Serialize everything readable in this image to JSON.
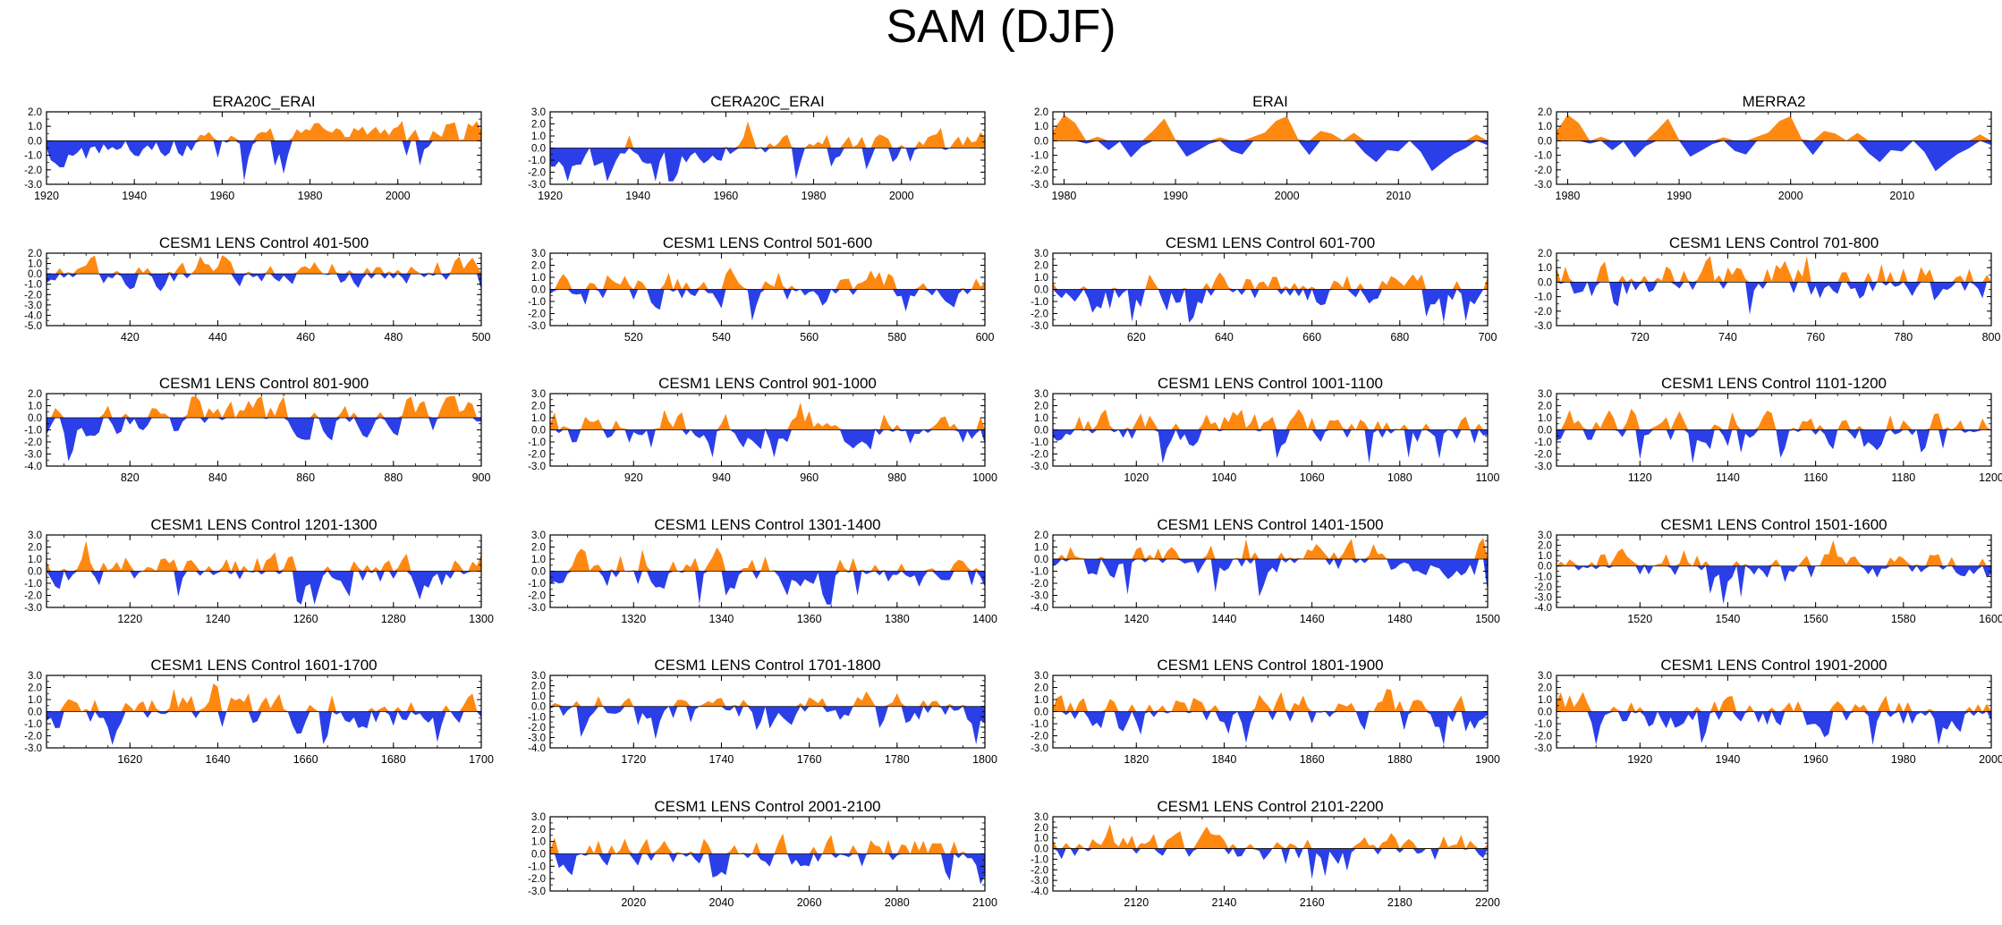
{
  "title": "SAM (DJF)",
  "colors": {
    "positive": "#ff8811",
    "negative": "#2a3fe8",
    "axis": "#000000",
    "zero_line": "#000000"
  },
  "chart_data": [
    {
      "type": "area",
      "title": "ERA20C_ERAI",
      "xlim": [
        1920,
        2019
      ],
      "ylim": [
        -3.0,
        2.0
      ],
      "yticks": [
        2.0,
        1.0,
        0.0,
        -1.0,
        -2.0,
        -3.0
      ],
      "ytick_labels": [
        "2.0",
        "1.0",
        "0.0",
        "-1.0",
        "-2.0",
        "-3.0"
      ],
      "xticks": [
        1920,
        1940,
        1960,
        1980,
        2000
      ],
      "xtick_labels": [
        "1920",
        "1940",
        "1960",
        "1980",
        "2000"
      ],
      "trend": [
        [
          0,
          -1.1
        ],
        [
          0.3,
          -0.5
        ],
        [
          0.5,
          0.4
        ],
        [
          0.7,
          0.6
        ],
        [
          1,
          0.9
        ]
      ],
      "amp": 0.55,
      "seed": 11
    },
    {
      "type": "area",
      "title": "CERA20C_ERAI",
      "xlim": [
        1920,
        2019
      ],
      "ylim": [
        -3.0,
        3.0
      ],
      "yticks": [
        3.0,
        2.0,
        1.0,
        0.0,
        -1.0,
        -2.0,
        -3.0
      ],
      "ytick_labels": [
        "3.0",
        "2.0",
        "1.0",
        "0.0",
        "-1.0",
        "-2.0",
        "-3.0"
      ],
      "xticks": [
        1920,
        1940,
        1960,
        1980,
        2000
      ],
      "xtick_labels": [
        "1920",
        "1940",
        "1960",
        "1980",
        "2000"
      ],
      "trend": [
        [
          0,
          -0.9
        ],
        [
          0.3,
          -0.6
        ],
        [
          0.5,
          0.2
        ],
        [
          0.7,
          0.5
        ],
        [
          1,
          0.9
        ]
      ],
      "amp": 0.6,
      "seed": 12
    },
    {
      "type": "area",
      "title": "ERAI",
      "xlim": [
        1979,
        2018
      ],
      "ylim": [
        -3.0,
        2.0
      ],
      "yticks": [
        2.0,
        1.0,
        0.0,
        -1.0,
        -2.0,
        -3.0
      ],
      "ytick_labels": [
        "2.0",
        "1.0",
        "0.0",
        "-1.0",
        "-2.0",
        "-3.0"
      ],
      "xticks": [
        1980,
        1990,
        2000,
        2010
      ],
      "xtick_labels": [
        "1980",
        "1990",
        "2000",
        "2010"
      ],
      "trend": [
        [
          0,
          0
        ],
        [
          1,
          0
        ]
      ],
      "amp": 1.0,
      "seed": 13
    },
    {
      "type": "area",
      "title": "MERRA2",
      "xlim": [
        1979,
        2018
      ],
      "ylim": [
        -3.0,
        2.0
      ],
      "yticks": [
        2.0,
        1.0,
        0.0,
        -1.0,
        -2.0,
        -3.0
      ],
      "ytick_labels": [
        "2.0",
        "1.0",
        "0.0",
        "-1.0",
        "-2.0",
        "-3.0"
      ],
      "xticks": [
        1980,
        1990,
        2000,
        2010
      ],
      "xtick_labels": [
        "1980",
        "1990",
        "2000",
        "2010"
      ],
      "trend": [
        [
          0,
          0
        ],
        [
          1,
          0
        ]
      ],
      "amp": 1.0,
      "seed": 13
    },
    {
      "type": "area",
      "title": "CESM1 LENS Control 401-500",
      "xlim": [
        401,
        500
      ],
      "ylim": [
        -5.0,
        2.0
      ],
      "yticks": [
        2.0,
        1.0,
        0.0,
        -1.0,
        -2.0,
        -3.0,
        -4.0,
        -5.0
      ],
      "ytick_labels": [
        "2.0",
        "1.0",
        "0.0",
        "-1.0",
        "-2.0",
        "-3.0",
        "-4.0",
        "-5.0"
      ],
      "xticks": [
        420,
        440,
        460,
        480,
        500
      ],
      "xtick_labels": [
        "420",
        "440",
        "460",
        "480",
        "500"
      ],
      "amp": 1.0,
      "seed": 21
    },
    {
      "type": "area",
      "title": "CESM1 LENS Control 501-600",
      "xlim": [
        501,
        600
      ],
      "ylim": [
        -3.0,
        3.0
      ],
      "yticks": [
        3.0,
        2.0,
        1.0,
        0.0,
        -1.0,
        -2.0,
        -3.0
      ],
      "ytick_labels": [
        "3.0",
        "2.0",
        "1.0",
        "0.0",
        "-1.0",
        "-2.0",
        "-3.0"
      ],
      "xticks": [
        520,
        540,
        560,
        580,
        600
      ],
      "xtick_labels": [
        "520",
        "540",
        "560",
        "580",
        "600"
      ],
      "amp": 1.0,
      "seed": 22
    },
    {
      "type": "area",
      "title": "CESM1 LENS Control 601-700",
      "xlim": [
        601,
        700
      ],
      "ylim": [
        -3.0,
        3.0
      ],
      "yticks": [
        3.0,
        2.0,
        1.0,
        0.0,
        -1.0,
        -2.0,
        -3.0
      ],
      "ytick_labels": [
        "3.0",
        "2.0",
        "1.0",
        "0.0",
        "-1.0",
        "-2.0",
        "-3.0"
      ],
      "xticks": [
        620,
        640,
        660,
        680,
        700
      ],
      "xtick_labels": [
        "620",
        "640",
        "660",
        "680",
        "700"
      ],
      "amp": 1.0,
      "seed": 23
    },
    {
      "type": "area",
      "title": "CESM1 LENS Control 701-800",
      "xlim": [
        701,
        800
      ],
      "ylim": [
        -3.0,
        2.0
      ],
      "yticks": [
        2.0,
        1.0,
        0.0,
        -1.0,
        -2.0,
        -3.0
      ],
      "ytick_labels": [
        "2.0",
        "1.0",
        "0.0",
        "-1.0",
        "-2.0",
        "-3.0"
      ],
      "xticks": [
        720,
        740,
        760,
        780,
        800
      ],
      "xtick_labels": [
        "720",
        "740",
        "760",
        "780",
        "800"
      ],
      "amp": 1.0,
      "seed": 24
    },
    {
      "type": "area",
      "title": "CESM1 LENS Control 801-900",
      "xlim": [
        801,
        900
      ],
      "ylim": [
        -4.0,
        2.0
      ],
      "yticks": [
        2.0,
        1.0,
        0.0,
        -1.0,
        -2.0,
        -3.0,
        -4.0
      ],
      "ytick_labels": [
        "2.0",
        "1.0",
        "0.0",
        "-1.0",
        "-2.0",
        "-3.0",
        "-4.0"
      ],
      "xticks": [
        820,
        840,
        860,
        880,
        900
      ],
      "xtick_labels": [
        "820",
        "840",
        "860",
        "880",
        "900"
      ],
      "amp": 1.0,
      "seed": 31
    },
    {
      "type": "area",
      "title": "CESM1 LENS Control 901-1000",
      "xlim": [
        901,
        1000
      ],
      "ylim": [
        -3.0,
        3.0
      ],
      "yticks": [
        3.0,
        2.0,
        1.0,
        0.0,
        -1.0,
        -2.0,
        -3.0
      ],
      "ytick_labels": [
        "3.0",
        "2.0",
        "1.0",
        "0.0",
        "-1.0",
        "-2.0",
        "-3.0"
      ],
      "xticks": [
        920,
        940,
        960,
        980,
        1000
      ],
      "xtick_labels": [
        "920",
        "940",
        "960",
        "980",
        "1000"
      ],
      "amp": 1.0,
      "seed": 32
    },
    {
      "type": "area",
      "title": "CESM1 LENS Control 1001-1100",
      "xlim": [
        1001,
        1100
      ],
      "ylim": [
        -3.0,
        3.0
      ],
      "yticks": [
        3.0,
        2.0,
        1.0,
        0.0,
        -1.0,
        -2.0,
        -3.0
      ],
      "ytick_labels": [
        "3.0",
        "2.0",
        "1.0",
        "0.0",
        "-1.0",
        "-2.0",
        "-3.0"
      ],
      "xticks": [
        1020,
        1040,
        1060,
        1080,
        1100
      ],
      "xtick_labels": [
        "1020",
        "1040",
        "1060",
        "1080",
        "1100"
      ],
      "amp": 1.0,
      "seed": 33
    },
    {
      "type": "area",
      "title": "CESM1 LENS Control 1101-1200",
      "xlim": [
        1101,
        1200
      ],
      "ylim": [
        -3.0,
        3.0
      ],
      "yticks": [
        3.0,
        2.0,
        1.0,
        0.0,
        -1.0,
        -2.0,
        -3.0
      ],
      "ytick_labels": [
        "3.0",
        "2.0",
        "1.0",
        "0.0",
        "-1.0",
        "-2.0",
        "-3.0"
      ],
      "xticks": [
        1120,
        1140,
        1160,
        1180,
        1200
      ],
      "xtick_labels": [
        "1120",
        "1140",
        "1160",
        "1180",
        "1200"
      ],
      "amp": 1.0,
      "seed": 34
    },
    {
      "type": "area",
      "title": "CESM1 LENS Control 1201-1300",
      "xlim": [
        1201,
        1300
      ],
      "ylim": [
        -3.0,
        3.0
      ],
      "yticks": [
        3.0,
        2.0,
        1.0,
        0.0,
        -1.0,
        -2.0,
        -3.0
      ],
      "ytick_labels": [
        "3.0",
        "2.0",
        "1.0",
        "0.0",
        "-1.0",
        "-2.0",
        "-3.0"
      ],
      "xticks": [
        1220,
        1240,
        1260,
        1280,
        1300
      ],
      "xtick_labels": [
        "1220",
        "1240",
        "1260",
        "1280",
        "1300"
      ],
      "amp": 1.0,
      "seed": 41
    },
    {
      "type": "area",
      "title": "CESM1 LENS Control 1301-1400",
      "xlim": [
        1301,
        1400
      ],
      "ylim": [
        -3.0,
        3.0
      ],
      "yticks": [
        3.0,
        2.0,
        1.0,
        0.0,
        -1.0,
        -2.0,
        -3.0
      ],
      "ytick_labels": [
        "3.0",
        "2.0",
        "1.0",
        "0.0",
        "-1.0",
        "-2.0",
        "-3.0"
      ],
      "xticks": [
        1320,
        1340,
        1360,
        1380,
        1400
      ],
      "xtick_labels": [
        "1320",
        "1340",
        "1360",
        "1380",
        "1400"
      ],
      "amp": 1.0,
      "seed": 42
    },
    {
      "type": "area",
      "title": "CESM1 LENS Control 1401-1500",
      "xlim": [
        1401,
        1500
      ],
      "ylim": [
        -4.0,
        2.0
      ],
      "yticks": [
        2.0,
        1.0,
        0.0,
        -1.0,
        -2.0,
        -3.0,
        -4.0
      ],
      "ytick_labels": [
        "2.0",
        "1.0",
        "0.0",
        "-1.0",
        "-2.0",
        "-3.0",
        "-4.0"
      ],
      "xticks": [
        1420,
        1440,
        1460,
        1480,
        1500
      ],
      "xtick_labels": [
        "1420",
        "1440",
        "1460",
        "1480",
        "1500"
      ],
      "amp": 1.0,
      "seed": 43
    },
    {
      "type": "area",
      "title": "CESM1 LENS Control 1501-1600",
      "xlim": [
        1501,
        1600
      ],
      "ylim": [
        -4.0,
        3.0
      ],
      "yticks": [
        3.0,
        2.0,
        1.0,
        0.0,
        -1.0,
        -2.0,
        -3.0,
        -4.0
      ],
      "ytick_labels": [
        "3.0",
        "2.0",
        "1.0",
        "0.0",
        "-1.0",
        "-2.0",
        "-3.0",
        "-4.0"
      ],
      "xticks": [
        1520,
        1540,
        1560,
        1580,
        1600
      ],
      "xtick_labels": [
        "1520",
        "1540",
        "1560",
        "1580",
        "1600"
      ],
      "amp": 1.0,
      "seed": 44
    },
    {
      "type": "area",
      "title": "CESM1 LENS Control 1601-1700",
      "xlim": [
        1601,
        1700
      ],
      "ylim": [
        -3.0,
        3.0
      ],
      "yticks": [
        3.0,
        2.0,
        1.0,
        0.0,
        -1.0,
        -2.0,
        -3.0
      ],
      "ytick_labels": [
        "3.0",
        "2.0",
        "1.0",
        "0.0",
        "-1.0",
        "-2.0",
        "-3.0"
      ],
      "xticks": [
        1620,
        1640,
        1660,
        1680,
        1700
      ],
      "xtick_labels": [
        "1620",
        "1640",
        "1660",
        "1680",
        "1700"
      ],
      "amp": 1.0,
      "seed": 51
    },
    {
      "type": "area",
      "title": "CESM1 LENS Control 1701-1800",
      "xlim": [
        1701,
        1800
      ],
      "ylim": [
        -4.0,
        3.0
      ],
      "yticks": [
        3.0,
        2.0,
        1.0,
        0.0,
        -1.0,
        -2.0,
        -3.0,
        -4.0
      ],
      "ytick_labels": [
        "3.0",
        "2.0",
        "1.0",
        "0.0",
        "-1.0",
        "-2.0",
        "-3.0",
        "-4.0"
      ],
      "xticks": [
        1720,
        1740,
        1760,
        1780,
        1800
      ],
      "xtick_labels": [
        "1720",
        "1740",
        "1760",
        "1780",
        "1800"
      ],
      "amp": 1.0,
      "seed": 52
    },
    {
      "type": "area",
      "title": "CESM1 LENS Control 1801-1900",
      "xlim": [
        1801,
        1900
      ],
      "ylim": [
        -3.0,
        3.0
      ],
      "yticks": [
        3.0,
        2.0,
        1.0,
        0.0,
        -1.0,
        -2.0,
        -3.0
      ],
      "ytick_labels": [
        "3.0",
        "2.0",
        "1.0",
        "0.0",
        "-1.0",
        "-2.0",
        "-3.0"
      ],
      "xticks": [
        1820,
        1840,
        1860,
        1880,
        1900
      ],
      "xtick_labels": [
        "1820",
        "1840",
        "1860",
        "1880",
        "1900"
      ],
      "amp": 1.0,
      "seed": 53
    },
    {
      "type": "area",
      "title": "CESM1 LENS Control 1901-2000",
      "xlim": [
        1901,
        2000
      ],
      "ylim": [
        -3.0,
        3.0
      ],
      "yticks": [
        3.0,
        2.0,
        1.0,
        0.0,
        -1.0,
        -2.0,
        -3.0
      ],
      "ytick_labels": [
        "3.0",
        "2.0",
        "1.0",
        "0.0",
        "-1.0",
        "-2.0",
        "-3.0"
      ],
      "xticks": [
        1920,
        1940,
        1960,
        1980,
        2000
      ],
      "xtick_labels": [
        "1920",
        "1940",
        "1960",
        "1980",
        "2000"
      ],
      "amp": 1.0,
      "seed": 54
    },
    {
      "type": "area",
      "title": "CESM1 LENS Control 2001-2100",
      "xlim": [
        2001,
        2100
      ],
      "ylim": [
        -3.0,
        3.0
      ],
      "yticks": [
        3.0,
        2.0,
        1.0,
        0.0,
        -1.0,
        -2.0,
        -3.0
      ],
      "ytick_labels": [
        "3.0",
        "2.0",
        "1.0",
        "0.0",
        "-1.0",
        "-2.0",
        "-3.0"
      ],
      "xticks": [
        2020,
        2040,
        2060,
        2080,
        2100
      ],
      "xtick_labels": [
        "2020",
        "2040",
        "2060",
        "2080",
        "2100"
      ],
      "amp": 1.0,
      "seed": 62
    },
    {
      "type": "area",
      "title": "CESM1 LENS Control 2101-2200",
      "xlim": [
        2101,
        2200
      ],
      "ylim": [
        -4.0,
        3.0
      ],
      "yticks": [
        3.0,
        2.0,
        1.0,
        0.0,
        -1.0,
        -2.0,
        -3.0,
        -4.0
      ],
      "ytick_labels": [
        "3.0",
        "2.0",
        "1.0",
        "0.0",
        "-1.0",
        "-2.0",
        "-3.0",
        "-4.0"
      ],
      "xticks": [
        2120,
        2140,
        2160,
        2180,
        2200
      ],
      "xtick_labels": [
        "2120",
        "2140",
        "2160",
        "2180",
        "2200"
      ],
      "amp": 1.0,
      "seed": 63
    }
  ]
}
